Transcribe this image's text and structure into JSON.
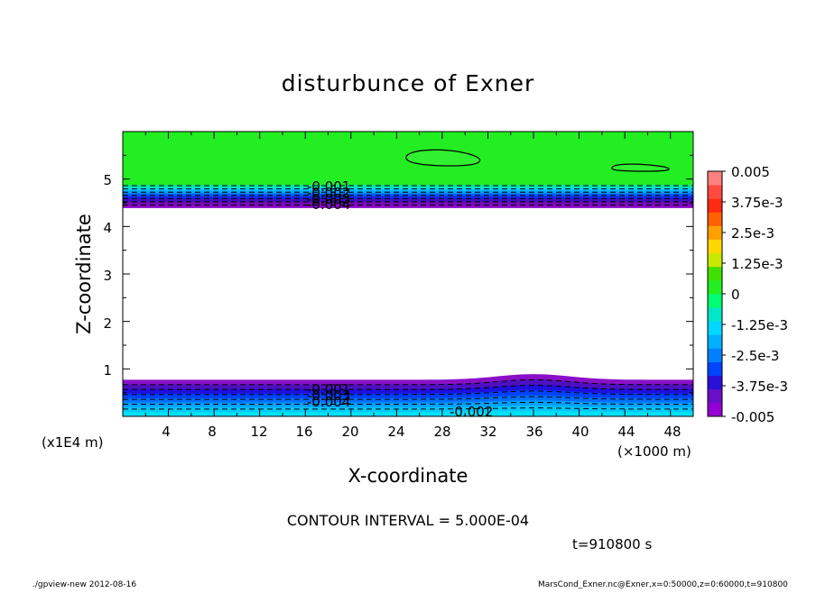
{
  "chart_data": {
    "type": "contour",
    "title": "disturbunce of Exner",
    "xlabel": "X-coordinate",
    "ylabel": "Z-coordinate",
    "x_unit": "(×1000 m)",
    "y_unit": "(x1E4 m)",
    "xlim": [
      0,
      50
    ],
    "ylim": [
      0,
      6
    ],
    "x_ticks": [
      "4",
      "8",
      "12",
      "16",
      "20",
      "24",
      "28",
      "32",
      "36",
      "40",
      "44",
      "48"
    ],
    "y_ticks": [
      "1",
      "2",
      "3",
      "4",
      "5"
    ],
    "contour_labels": [
      "-0.001",
      "-0.002",
      "-0.003",
      "-0.004",
      "-0.001",
      "-0.003",
      "-0.004",
      "-0.002"
    ],
    "colorbar": {
      "labels": [
        "0.005",
        "3.75e-3",
        "2.5e-3",
        "1.25e-3",
        "0",
        "-1.25e-3",
        "-2.5e-3",
        "-3.75e-3",
        "-0.005"
      ],
      "colors": [
        "#9400d3",
        "#6a0fc8",
        "#2a10d8",
        "#0044ff",
        "#0080ff",
        "#00b0ff",
        "#00d8ff",
        "#00e8c8",
        "#00ff70",
        "#22ee22",
        "#40e000",
        "#c8e800",
        "#ffd700",
        "#ffa000",
        "#ff6000",
        "#ff2a10",
        "#ff4a40",
        "#ff8080"
      ]
    },
    "upper_band": {
      "z_top": 6.0,
      "z_bottom": 4.4,
      "fill_value": 0.0
    },
    "lower_band": {
      "z_top": 0.8,
      "z_bottom": 0.0
    },
    "undefined_region": {
      "z_from": 0.8,
      "z_to": 4.4
    }
  },
  "contour_interval": "CONTOUR INTERVAL = 5.000E-04",
  "time_label": "t=910800 s",
  "footer_left": "./gpview-new  2012-08-16",
  "footer_right": "MarsCond_Exner.nc@Exner,x=0:50000,z=0:60000,t=910800"
}
